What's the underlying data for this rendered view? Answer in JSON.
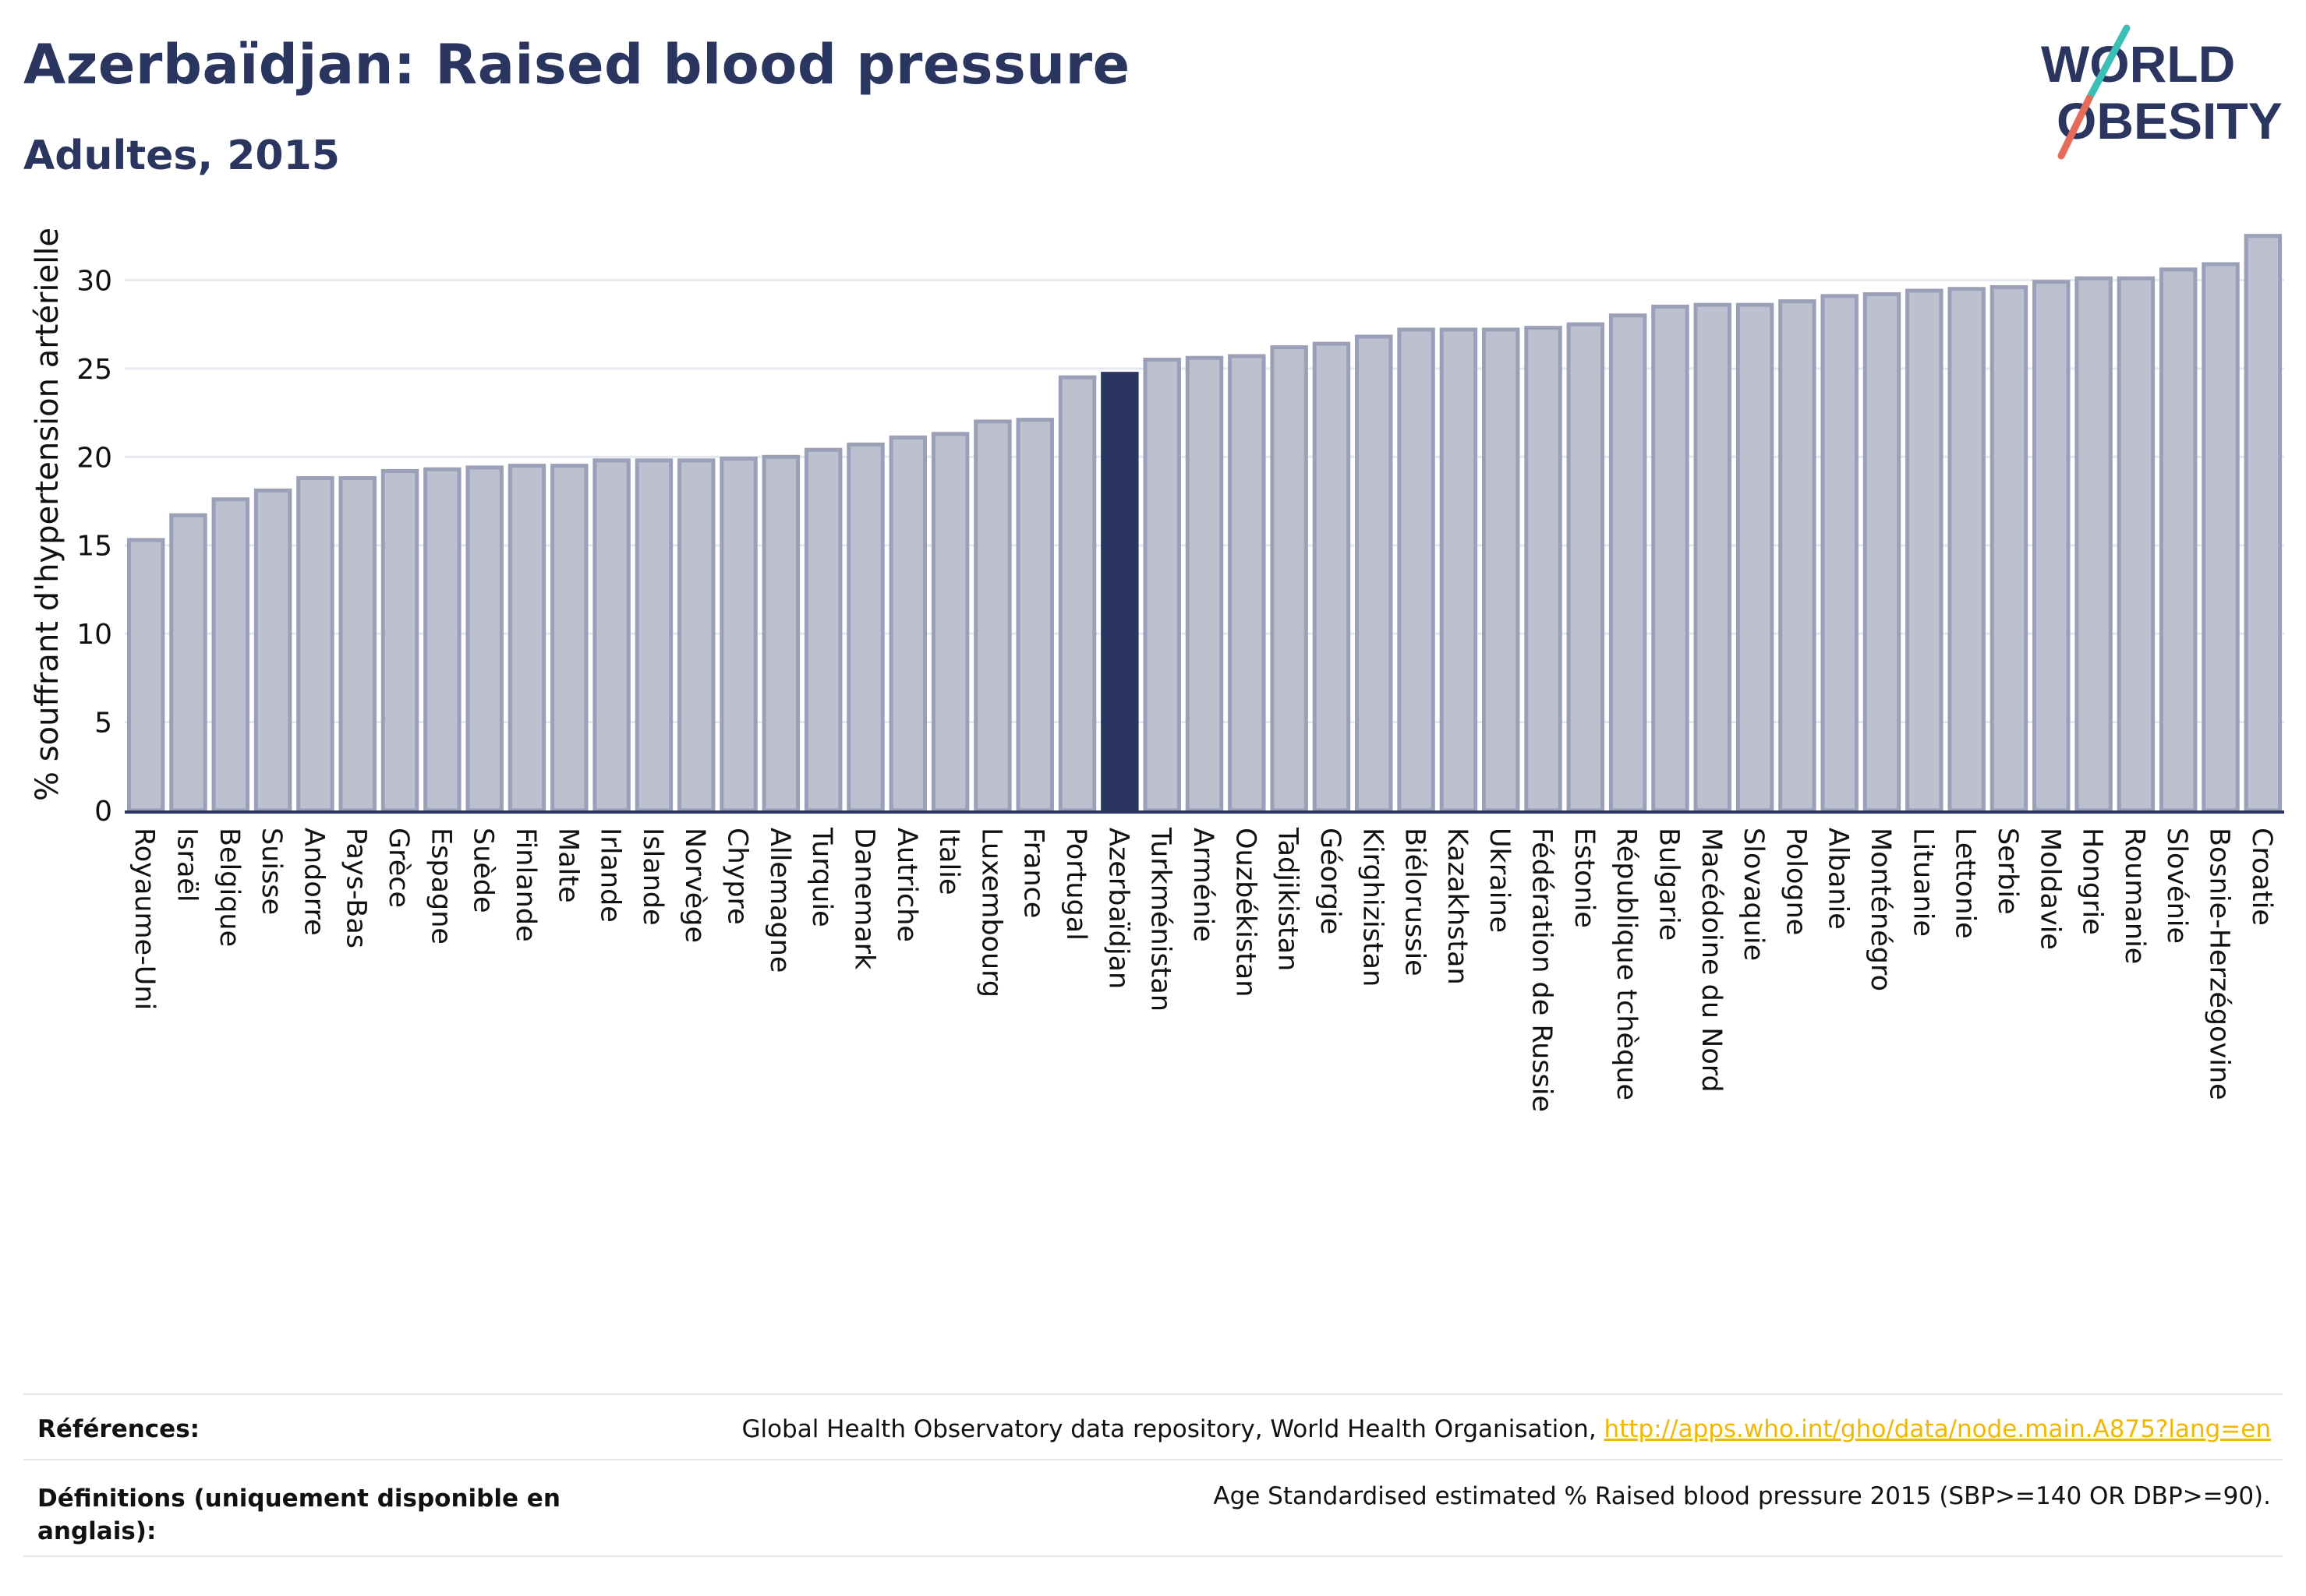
{
  "header": {
    "title": "Azerbaïdjan: Raised blood pressure",
    "subtitle": "Adultes, 2015"
  },
  "logo": {
    "line1": "WORLD",
    "line2": "OBESITY"
  },
  "colors": {
    "highlight_bar": "#2a3560",
    "other_bar_fill": "#bcc0cf",
    "other_bar_stroke": "#9aa0b8",
    "title": "#2a3560",
    "link": "#f2b705"
  },
  "chart_data": {
    "type": "bar",
    "ylabel": "% souffrant d'hypertension artérielle",
    "ylim": [
      0,
      33.5
    ],
    "yticks": [
      0,
      5,
      10,
      15,
      20,
      25,
      30
    ],
    "grid": true,
    "highlight": "Azerbaïdjan",
    "categories": [
      "Royaume-Uni",
      "Israël",
      "Belgique",
      "Suisse",
      "Andorre",
      "Pays-Bas",
      "Grèce",
      "Espagne",
      "Suède",
      "Finlande",
      "Malte",
      "Irlande",
      "Islande",
      "Norvège",
      "Chypre",
      "Allemagne",
      "Turquie",
      "Danemark",
      "Autriche",
      "Italie",
      "Luxembourg",
      "France",
      "Portugal",
      "Azerbaïdjan",
      "Turkménistan",
      "Arménie",
      "Ouzbékistan",
      "Tadjikistan",
      "Géorgie",
      "Kirghizistan",
      "Biélorussie",
      "Kazakhstan",
      "Ukraine",
      "Fédération de Russie",
      "Estonie",
      "République tchèque",
      "Bulgarie",
      "Macédoine du Nord",
      "Slovaquie",
      "Pologne",
      "Albanie",
      "Monténégro",
      "Lituanie",
      "Lettonie",
      "Serbie",
      "Moldavie",
      "Hongrie",
      "Roumanie",
      "Slovénie",
      "Bosnie-Herzégovine",
      "Croatie"
    ],
    "values": [
      15.3,
      16.7,
      17.6,
      18.1,
      18.8,
      18.8,
      19.2,
      19.3,
      19.4,
      19.5,
      19.5,
      19.8,
      19.8,
      19.8,
      19.9,
      20.0,
      20.4,
      20.7,
      21.1,
      21.3,
      22.0,
      22.1,
      24.5,
      24.7,
      25.5,
      25.6,
      25.7,
      26.2,
      26.4,
      26.8,
      27.2,
      27.2,
      27.2,
      27.3,
      27.5,
      28.0,
      28.5,
      28.6,
      28.6,
      28.8,
      29.1,
      29.2,
      29.4,
      29.5,
      29.6,
      29.9,
      30.1,
      30.1,
      30.6,
      30.9,
      32.5
    ]
  },
  "footer": {
    "references_label": "Références:",
    "references_text": "Global Health Observatory data repository, World Health Organisation, ",
    "references_link": "http://apps.who.int/gho/data/node.main.A875?lang=en",
    "definitions_label_line1": "Définitions (uniquement disponible en",
    "definitions_label_line2": "anglais):",
    "definitions_text": "Age Standardised estimated % Raised blood pressure 2015 (SBP>=140 OR DBP>=90)."
  }
}
